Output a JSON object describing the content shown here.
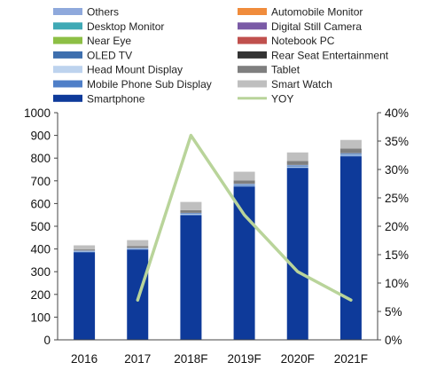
{
  "chart_data": {
    "type": "bar",
    "stacked": true,
    "categories": [
      "2016",
      "2017",
      "2018F",
      "2019F",
      "2020F",
      "2021F"
    ],
    "ylim": [
      0,
      1000
    ],
    "yticks": [
      "0",
      "100",
      "200",
      "300",
      "400",
      "500",
      "600",
      "700",
      "800",
      "900",
      "1000"
    ],
    "y2lim": [
      0,
      40
    ],
    "y2ticks": [
      "0%",
      "5%",
      "10%",
      "15%",
      "20%",
      "25%",
      "30%",
      "35%",
      "40%"
    ],
    "grid": false,
    "legend_position": "top",
    "series": [
      {
        "name": "Smartphone",
        "color": "#0E3A9A",
        "values": [
          385,
          397,
          548,
          675,
          756,
          808
        ]
      },
      {
        "name": "Mobile Phone Sub Display",
        "color": "#4F7FC8",
        "values": [
          3,
          3,
          3,
          3,
          3,
          3
        ]
      },
      {
        "name": "Head Mount Display",
        "color": "#BDD3EE",
        "values": [
          2,
          2,
          3,
          3,
          4,
          4
        ]
      },
      {
        "name": "OLED TV",
        "color": "#3E6FAE",
        "values": [
          1,
          1,
          3,
          3,
          4,
          4
        ]
      },
      {
        "name": "Near Eye",
        "color": "#8DBF45",
        "values": [
          0,
          0,
          0,
          0,
          0,
          0
        ]
      },
      {
        "name": "Desktop Monitor",
        "color": "#3FA9B5",
        "values": [
          0,
          0,
          0,
          0,
          0,
          0
        ]
      },
      {
        "name": "Others",
        "color": "#8FA9DC",
        "values": [
          2,
          2,
          2,
          3,
          3,
          3
        ]
      },
      {
        "name": "Automobile Monitor",
        "color": "#F08C3C",
        "values": [
          0,
          0,
          0,
          0,
          0,
          0
        ]
      },
      {
        "name": "Digital Still Camera",
        "color": "#7A5AA6",
        "values": [
          0,
          0,
          0,
          0,
          0,
          0
        ]
      },
      {
        "name": "Notebook PC",
        "color": "#C0504D",
        "values": [
          0,
          0,
          0,
          0,
          0,
          0
        ]
      },
      {
        "name": "Rear Seat Entertainment",
        "color": "#333333",
        "values": [
          0,
          0,
          0,
          0,
          0,
          0
        ]
      },
      {
        "name": "Tablet",
        "color": "#7F7F7F",
        "values": [
          5,
          8,
          12,
          15,
          17,
          20
        ]
      },
      {
        "name": "Smart Watch",
        "color": "#BFBFBF",
        "values": [
          18,
          26,
          36,
          38,
          38,
          38
        ]
      }
    ],
    "line": {
      "name": "YOY",
      "color": "#B9D49A",
      "axis": "right",
      "values": [
        null,
        7,
        36,
        22,
        12,
        7
      ]
    }
  },
  "legend": [
    {
      "label": "Others",
      "color": "#8FA9DC",
      "kind": "box"
    },
    {
      "label": "Automobile Monitor",
      "color": "#F08C3C",
      "kind": "box"
    },
    {
      "label": "Desktop Monitor",
      "color": "#3FA9B5",
      "kind": "box"
    },
    {
      "label": "Digital Still Camera",
      "color": "#7A5AA6",
      "kind": "box"
    },
    {
      "label": "Near Eye",
      "color": "#8DBF45",
      "kind": "box"
    },
    {
      "label": "Notebook PC",
      "color": "#C0504D",
      "kind": "box"
    },
    {
      "label": "OLED TV",
      "color": "#3E6FAE",
      "kind": "box"
    },
    {
      "label": "Rear Seat Entertainment",
      "color": "#333333",
      "kind": "box"
    },
    {
      "label": "Head Mount Display",
      "color": "#BDD3EE",
      "kind": "box"
    },
    {
      "label": "Tablet",
      "color": "#7F7F7F",
      "kind": "box"
    },
    {
      "label": "Mobile Phone Sub Display",
      "color": "#4F7FC8",
      "kind": "box"
    },
    {
      "label": "Smart Watch",
      "color": "#BFBFBF",
      "kind": "box"
    },
    {
      "label": "Smartphone",
      "color": "#0E3A9A",
      "kind": "box"
    },
    {
      "label": "YOY",
      "color": "#B9D49A",
      "kind": "line"
    }
  ]
}
